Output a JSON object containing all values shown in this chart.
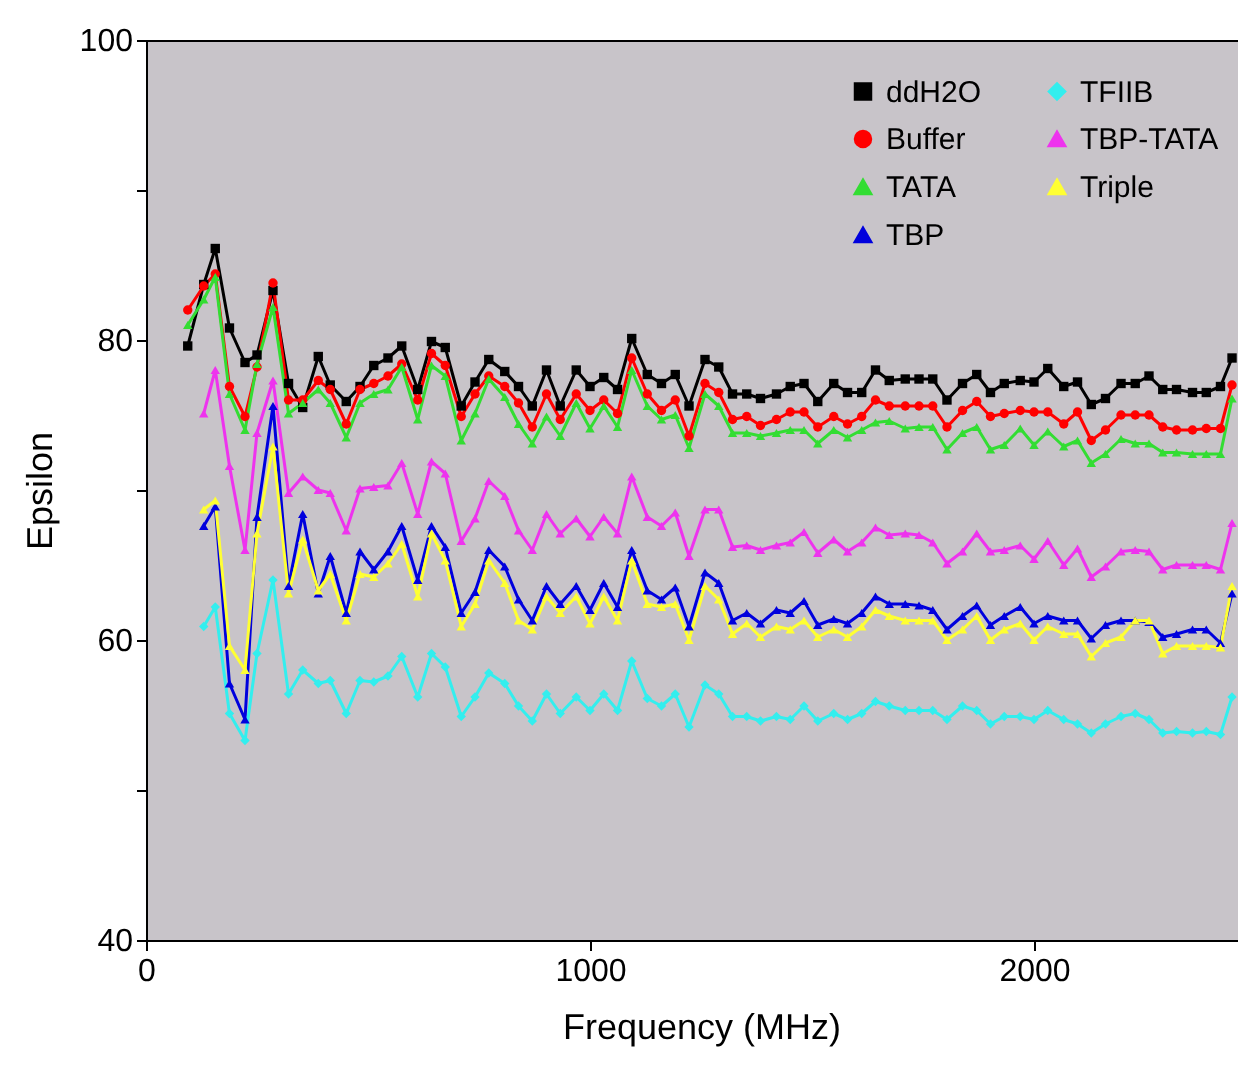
{
  "chart_data": {
    "type": "line",
    "xlabel": "Frequency (MHz)",
    "ylabel": "Epsilon",
    "xlim": [
      0,
      2500
    ],
    "ylim": [
      40,
      100
    ],
    "xticks": [
      0,
      1000,
      2000
    ],
    "yticks": [
      40,
      {
        "value": 50,
        "label": null
      },
      60,
      {
        "value": 70,
        "label": null
      },
      80,
      {
        "value": 90,
        "label": null
      },
      100
    ],
    "grid": false,
    "legend": "top right",
    "line_style": "solid",
    "x": [
      94,
      130,
      156,
      188,
      223,
      250,
      286,
      321,
      353,
      388,
      415,
      451,
      482,
      513,
      545,
      576,
      612,
      643,
      674,
      710,
      741,
      772,
      808,
      839,
      870,
      902,
      933,
      969,
      1000,
      1031,
      1062,
      1094,
      1129,
      1161,
      1192,
      1223,
      1259,
      1290,
      1321,
      1353,
      1384,
      1420,
      1451,
      1482,
      1513,
      1549,
      1580,
      1612,
      1643,
      1674,
      1710,
      1741,
      1772,
      1804,
      1839,
      1871,
      1902,
      1933,
      1969,
      2000,
      2031,
      2067,
      2098,
      2129,
      2161,
      2196,
      2228,
      2259,
      2290,
      2321,
      2357,
      2388,
      2420,
      2446
    ],
    "series": [
      {
        "name": "ddH2O",
        "color": "#000000",
        "marker": "square",
        "values": [
          79.6,
          83.7,
          86.1,
          80.8,
          78.5,
          79,
          83.3,
          77.1,
          75.5,
          78.9,
          77,
          75.9,
          76.9,
          78.3,
          78.8,
          79.6,
          76.7,
          79.9,
          79.5,
          75.6,
          77.2,
          78.7,
          77.9,
          76.9,
          75.6,
          78,
          75.6,
          78,
          76.9,
          77.5,
          76.7,
          80.1,
          77.7,
          77.1,
          77.7,
          75.6,
          78.7,
          78.2,
          76.4,
          76.4,
          76.1,
          76.4,
          76.9,
          77.1,
          75.9,
          77.1,
          76.5,
          76.5,
          78,
          77.3,
          77.4,
          77.4,
          77.4,
          76,
          77.1,
          77.7,
          76.5,
          77.1,
          77.3,
          77.2,
          78.1,
          76.9,
          77.2,
          75.7,
          76.1,
          77.1,
          77.1,
          77.6,
          76.7,
          76.7,
          76.5,
          76.5,
          76.9,
          78.8
        ]
      },
      {
        "name": "Buffer",
        "color": "#ff0000",
        "marker": "circle",
        "values": [
          82,
          83.6,
          84.4,
          76.9,
          74.9,
          78.2,
          83.8,
          76,
          76,
          77.3,
          76.7,
          74.4,
          76.7,
          77.1,
          77.6,
          78.4,
          76,
          79.1,
          78.3,
          74.9,
          76.4,
          77.6,
          76.9,
          75.8,
          74.2,
          76.4,
          74.7,
          76.4,
          75.3,
          76,
          75.1,
          78.8,
          76.4,
          75.3,
          76,
          73.6,
          77.1,
          76.5,
          74.7,
          74.9,
          74.3,
          74.7,
          75.2,
          75.2,
          74.2,
          74.9,
          74.4,
          74.9,
          76,
          75.6,
          75.6,
          75.6,
          75.6,
          74.2,
          75.3,
          75.9,
          74.9,
          75.1,
          75.3,
          75.2,
          75.2,
          74.4,
          75.2,
          73.3,
          74,
          75,
          75,
          75,
          74.2,
          74,
          74,
          74.1,
          74.1,
          77
        ]
      },
      {
        "name": "TATA",
        "color": "#33dd33",
        "marker": "triangle",
        "values": [
          81,
          82.7,
          84.2,
          76.4,
          74,
          78.4,
          82.2,
          75.1,
          75.8,
          76.7,
          75.8,
          73.5,
          75.8,
          76.4,
          76.7,
          78.2,
          74.7,
          78.3,
          77.6,
          73.3,
          75.1,
          77.4,
          76.2,
          74.4,
          73.1,
          74.9,
          73.6,
          75.8,
          74.1,
          75.6,
          74.2,
          78,
          75.6,
          74.7,
          75,
          72.8,
          76.4,
          75.6,
          73.8,
          73.8,
          73.6,
          73.8,
          74,
          74,
          73.1,
          74,
          73.5,
          74,
          74.5,
          74.6,
          74.1,
          74.2,
          74.2,
          72.7,
          73.8,
          74.2,
          72.7,
          73,
          74.1,
          73,
          73.9,
          72.9,
          73.3,
          71.8,
          72.4,
          73.4,
          73.1,
          73.1,
          72.5,
          72.5,
          72.4,
          72.4,
          72.4,
          76.1
        ]
      },
      {
        "name": "TBP",
        "color": "#0000dd",
        "marker": "triangle",
        "values": [
          null,
          67.6,
          68.9,
          57.1,
          54.7,
          68.2,
          75.6,
          63.6,
          68.4,
          63.1,
          65.6,
          61.8,
          65.9,
          64.7,
          65.9,
          67.6,
          64,
          67.6,
          66.2,
          61.8,
          63.2,
          66,
          64.9,
          62.7,
          61.3,
          63.6,
          62.4,
          63.6,
          62,
          63.8,
          62.2,
          66,
          63.3,
          62.7,
          63.5,
          60.9,
          64.5,
          63.8,
          61.3,
          61.8,
          61.1,
          62,
          61.8,
          62.6,
          61,
          61.4,
          61.1,
          61.8,
          62.9,
          62.4,
          62.4,
          62.3,
          62,
          60.7,
          61.6,
          62.3,
          61,
          61.6,
          62.2,
          61.1,
          61.6,
          61.3,
          61.3,
          60.1,
          61,
          61.3,
          61.3,
          61.2,
          60.2,
          60.4,
          60.7,
          60.7,
          59.8,
          63.1
        ]
      },
      {
        "name": "TFIIB",
        "color": "#33eeee",
        "marker": "diamond",
        "values": [
          null,
          60.9,
          62.2,
          55.1,
          53.3,
          59.1,
          64,
          56.4,
          58,
          57.1,
          57.3,
          55.1,
          57.3,
          57.2,
          57.6,
          58.9,
          56.2,
          59.1,
          58.2,
          54.9,
          56.2,
          57.8,
          57.1,
          55.6,
          54.6,
          56.4,
          55.1,
          56.2,
          55.3,
          56.4,
          55.3,
          58.6,
          56.1,
          55.6,
          56.4,
          54.2,
          57,
          56.4,
          54.9,
          54.9,
          54.6,
          54.9,
          54.7,
          55.6,
          54.6,
          55.1,
          54.7,
          55.1,
          55.9,
          55.6,
          55.3,
          55.3,
          55.3,
          54.7,
          55.6,
          55.3,
          54.4,
          54.9,
          54.9,
          54.7,
          55.3,
          54.7,
          54.4,
          53.8,
          54.4,
          54.9,
          55.1,
          54.7,
          53.8,
          53.9,
          53.8,
          53.9,
          53.7,
          56.2
        ]
      },
      {
        "name": "TBP-TATA",
        "color": "#ee33ee",
        "marker": "triangle",
        "values": [
          null,
          75.1,
          78,
          71.6,
          66,
          73.8,
          77.3,
          69.8,
          70.9,
          70,
          69.8,
          67.3,
          70.1,
          70.2,
          70.3,
          71.8,
          68.4,
          71.9,
          71.1,
          66.6,
          68.1,
          70.6,
          69.6,
          67.3,
          66,
          68.4,
          67.1,
          68.1,
          66.9,
          68.2,
          67.1,
          70.9,
          68.2,
          67.6,
          68.5,
          65.6,
          68.7,
          68.7,
          66.2,
          66.3,
          66,
          66.3,
          66.5,
          67.2,
          65.8,
          66.7,
          65.9,
          66.5,
          67.5,
          67,
          67.1,
          67,
          66.5,
          65.1,
          65.9,
          67.1,
          65.9,
          66,
          66.3,
          65.4,
          66.6,
          65,
          66.1,
          64.2,
          64.9,
          65.9,
          66,
          65.9,
          64.7,
          65,
          65,
          65,
          64.7,
          67.8
        ]
      },
      {
        "name": "Triple",
        "color": "#ffff33",
        "marker": "triangle",
        "values": [
          null,
          68.7,
          69.3,
          59.6,
          58,
          67.1,
          72.9,
          63.1,
          66.7,
          63.3,
          64.4,
          61.3,
          64.4,
          64.2,
          65.1,
          66.4,
          62.9,
          67.1,
          65.3,
          60.9,
          62.4,
          65.3,
          63.8,
          61.3,
          60.7,
          62.9,
          61.8,
          62.9,
          61.1,
          62.9,
          61.3,
          65.3,
          62.4,
          62.2,
          62.4,
          60,
          63.6,
          62.7,
          60.4,
          61.1,
          60.2,
          60.9,
          60.7,
          61.3,
          60.2,
          60.7,
          60.2,
          60.9,
          62,
          61.6,
          61.3,
          61.3,
          61.3,
          60,
          60.7,
          61.6,
          60,
          60.7,
          61.1,
          60,
          60.9,
          60.4,
          60.4,
          58.9,
          59.8,
          60.2,
          61.3,
          61.3,
          59.1,
          59.6,
          59.6,
          59.6,
          59.5,
          63.6
        ]
      }
    ]
  }
}
